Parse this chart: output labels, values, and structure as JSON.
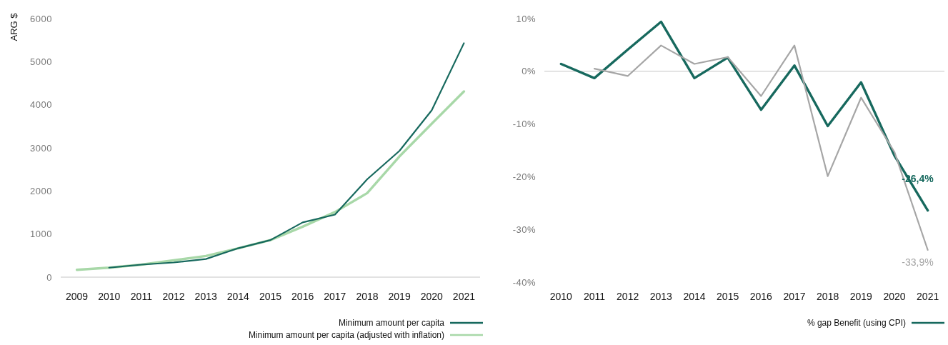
{
  "chart_data": [
    {
      "type": "line",
      "ylabel": "ARG $",
      "categories": [
        "2009",
        "2010",
        "2011",
        "2012",
        "2013",
        "2014",
        "2015",
        "2016",
        "2017",
        "2018",
        "2019",
        "2020",
        "2021"
      ],
      "series": [
        {
          "name": "Minimum amount per capita",
          "color": "#17695e",
          "values": [
            null,
            220,
            290,
            340,
            420,
            670,
            860,
            1270,
            1450,
            2270,
            2930,
            3870,
            5430
          ]
        },
        {
          "name": "Minimum amount per capita (adjusted with inflation)",
          "color": "#a8d8a8",
          "values": [
            170,
            220,
            290,
            390,
            490,
            670,
            860,
            1170,
            1510,
            1950,
            2800,
            3560,
            4310
          ]
        }
      ],
      "ylim": [
        0,
        6000
      ],
      "yticks": [
        0,
        1000,
        2000,
        3000,
        4000,
        5000,
        6000
      ],
      "grid": false,
      "legend": "bottom right"
    },
    {
      "type": "line",
      "categories": [
        "2010",
        "2011",
        "2012",
        "2013",
        "2014",
        "2015",
        "2016",
        "2017",
        "2018",
        "2019",
        "2020",
        "2021"
      ],
      "series": [
        {
          "color": "#a6a6a6",
          "values": [
            null,
            0.5,
            -0.9,
            4.9,
            1.4,
            2.7,
            -4.7,
            4.9,
            -19.9,
            -5.0,
            -15.3,
            -33.9
          ],
          "value_labels": [
            null,
            null,
            null,
            null,
            null,
            null,
            null,
            null,
            null,
            null,
            null,
            "-33,9%"
          ]
        },
        {
          "name": "% gap Benefit (using CPI)",
          "color": "#17695e",
          "values": [
            1.4,
            -1.3,
            4.1,
            9.4,
            -1.3,
            2.6,
            -7.3,
            1.1,
            -10.4,
            -2.1,
            -16.0,
            -26.4
          ],
          "value_labels": [
            null,
            null,
            null,
            null,
            null,
            null,
            null,
            null,
            null,
            null,
            null,
            "-26,4%"
          ]
        }
      ],
      "ylim": [
        -40,
        10
      ],
      "yticks": [
        {
          "value": 10,
          "label": "10%"
        },
        {
          "value": 0,
          "label": "0%"
        },
        {
          "value": -10,
          "label": "-10%"
        },
        {
          "value": -20,
          "label": "-20%"
        },
        {
          "value": -30,
          "label": "-30%"
        },
        {
          "value": -40,
          "label": "-40%"
        }
      ],
      "ref_lines": [
        {
          "axis": "y",
          "value": 0,
          "color": "#d9d9d9"
        }
      ],
      "grid": false,
      "legend": "bottom right"
    }
  ]
}
